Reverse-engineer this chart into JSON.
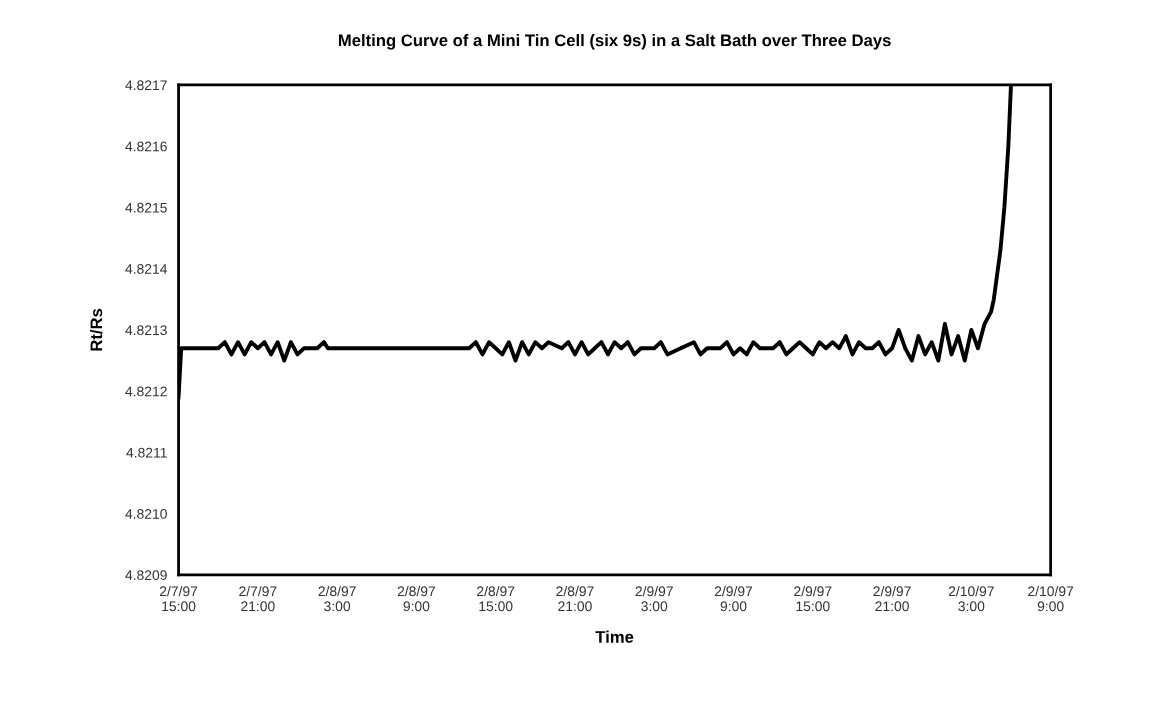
{
  "chart_data": {
    "type": "line",
    "title": "Melting Curve of a Mini Tin Cell (six 9s) in a Salt Bath over Three Days",
    "xlabel": "Time",
    "ylabel": "Rt/Rs",
    "x": [
      "1997-02-07T15:00",
      "1997-02-07T15:12",
      "1997-02-07T18:00",
      "1997-02-07T18:30",
      "1997-02-07T19:00",
      "1997-02-07T19:30",
      "1997-02-07T20:00",
      "1997-02-07T20:30",
      "1997-02-07T21:00",
      "1997-02-07T21:30",
      "1997-02-07T22:00",
      "1997-02-07T22:30",
      "1997-02-07T23:00",
      "1997-02-07T23:30",
      "1997-02-08T00:00",
      "1997-02-08T00:30",
      "1997-02-08T01:30",
      "1997-02-08T02:00",
      "1997-02-08T02:18",
      "1997-02-08T13:00",
      "1997-02-08T13:30",
      "1997-02-08T14:00",
      "1997-02-08T14:30",
      "1997-02-08T15:00",
      "1997-02-08T15:30",
      "1997-02-08T16:00",
      "1997-02-08T16:30",
      "1997-02-08T17:00",
      "1997-02-08T17:30",
      "1997-02-08T18:00",
      "1997-02-08T18:30",
      "1997-02-08T19:00",
      "1997-02-08T20:00",
      "1997-02-08T20:30",
      "1997-02-08T21:00",
      "1997-02-08T21:30",
      "1997-02-08T22:00",
      "1997-02-08T22:30",
      "1997-02-08T23:00",
      "1997-02-08T23:30",
      "1997-02-09T00:00",
      "1997-02-09T00:30",
      "1997-02-09T01:00",
      "1997-02-09T01:30",
      "1997-02-09T02:00",
      "1997-02-09T03:00",
      "1997-02-09T03:30",
      "1997-02-09T04:00",
      "1997-02-09T05:00",
      "1997-02-09T06:00",
      "1997-02-09T06:30",
      "1997-02-09T07:00",
      "1997-02-09T08:00",
      "1997-02-09T08:30",
      "1997-02-09T09:00",
      "1997-02-09T09:30",
      "1997-02-09T10:00",
      "1997-02-09T10:30",
      "1997-02-09T11:00",
      "1997-02-09T12:00",
      "1997-02-09T12:30",
      "1997-02-09T13:00",
      "1997-02-09T13:30",
      "1997-02-09T14:00",
      "1997-02-09T14:30",
      "1997-02-09T15:00",
      "1997-02-09T15:30",
      "1997-02-09T16:00",
      "1997-02-09T16:30",
      "1997-02-09T17:00",
      "1997-02-09T17:30",
      "1997-02-09T18:00",
      "1997-02-09T18:30",
      "1997-02-09T19:00",
      "1997-02-09T19:30",
      "1997-02-09T20:00",
      "1997-02-09T20:30",
      "1997-02-09T21:00",
      "1997-02-09T21:30",
      "1997-02-09T22:00",
      "1997-02-09T22:30",
      "1997-02-09T23:00",
      "1997-02-09T23:30",
      "1997-02-10T00:00",
      "1997-02-10T00:30",
      "1997-02-10T01:00",
      "1997-02-10T01:30",
      "1997-02-10T02:00",
      "1997-02-10T02:30",
      "1997-02-10T03:00",
      "1997-02-10T03:30",
      "1997-02-10T04:00",
      "1997-02-10T04:30",
      "1997-02-10T04:42",
      "1997-02-10T05:12",
      "1997-02-10T05:30",
      "1997-02-10T05:48",
      "1997-02-10T06:00"
    ],
    "values": [
      4.82119,
      4.82127,
      4.82127,
      4.82128,
      4.82126,
      4.82128,
      4.82126,
      4.82128,
      4.82127,
      4.82128,
      4.82126,
      4.82128,
      4.82125,
      4.82128,
      4.82126,
      4.82127,
      4.82127,
      4.82128,
      4.82127,
      4.82127,
      4.82128,
      4.82126,
      4.82128,
      4.82127,
      4.82126,
      4.82128,
      4.82125,
      4.82128,
      4.82126,
      4.82128,
      4.82127,
      4.82128,
      4.82127,
      4.82128,
      4.82126,
      4.82128,
      4.82126,
      4.82127,
      4.82128,
      4.82126,
      4.82128,
      4.82127,
      4.82128,
      4.82126,
      4.82127,
      4.82127,
      4.82128,
      4.82126,
      4.82127,
      4.82128,
      4.82126,
      4.82127,
      4.82127,
      4.82128,
      4.82126,
      4.82127,
      4.82126,
      4.82128,
      4.82127,
      4.82127,
      4.82128,
      4.82126,
      4.82127,
      4.82128,
      4.82127,
      4.82126,
      4.82128,
      4.82127,
      4.82128,
      4.82127,
      4.82129,
      4.82126,
      4.82128,
      4.82127,
      4.82127,
      4.82128,
      4.82126,
      4.82127,
      4.8213,
      4.82127,
      4.82125,
      4.82129,
      4.82126,
      4.82128,
      4.82125,
      4.82131,
      4.82126,
      4.82129,
      4.82125,
      4.8213,
      4.82127,
      4.82131,
      4.82133,
      4.82135,
      4.82143,
      4.8215,
      4.8216,
      4.8217
    ],
    "color": "#000000",
    "marker": "none",
    "line_style": "solid",
    "grid": false,
    "legend": false,
    "xlim": [
      "1997-02-07T15:00",
      "1997-02-10T09:00"
    ],
    "ylim": [
      4.8209,
      4.8217
    ],
    "xticks": [
      {
        "value": "1997-02-07T15:00",
        "label": "2/7/97\n15:00"
      },
      {
        "value": "1997-02-07T21:00",
        "label": "2/7/97\n21:00"
      },
      {
        "value": "1997-02-08T03:00",
        "label": "2/8/97\n3:00"
      },
      {
        "value": "1997-02-08T09:00",
        "label": "2/8/97\n9:00"
      },
      {
        "value": "1997-02-08T15:00",
        "label": "2/8/97\n15:00"
      },
      {
        "value": "1997-02-08T21:00",
        "label": "2/8/97\n21:00"
      },
      {
        "value": "1997-02-09T03:00",
        "label": "2/9/97\n3:00"
      },
      {
        "value": "1997-02-09T09:00",
        "label": "2/9/97\n9:00"
      },
      {
        "value": "1997-02-09T15:00",
        "label": "2/9/97\n15:00"
      },
      {
        "value": "1997-02-09T21:00",
        "label": "2/9/97\n21:00"
      },
      {
        "value": "1997-02-10T03:00",
        "label": "2/10/97\n3:00"
      },
      {
        "value": "1997-02-10T09:00",
        "label": "2/10/97\n9:00"
      }
    ],
    "yticks": [
      {
        "value": 4.8209,
        "label": "4.8209"
      },
      {
        "value": 4.821,
        "label": "4.8210"
      },
      {
        "value": 4.8211,
        "label": "4.8211"
      },
      {
        "value": 4.8212,
        "label": "4.8212"
      },
      {
        "value": 4.8213,
        "label": "4.8213"
      },
      {
        "value": 4.8214,
        "label": "4.8214"
      },
      {
        "value": 4.8215,
        "label": "4.8215"
      },
      {
        "value": 4.8216,
        "label": "4.8216"
      },
      {
        "value": 4.8217,
        "label": "4.8217"
      }
    ]
  }
}
